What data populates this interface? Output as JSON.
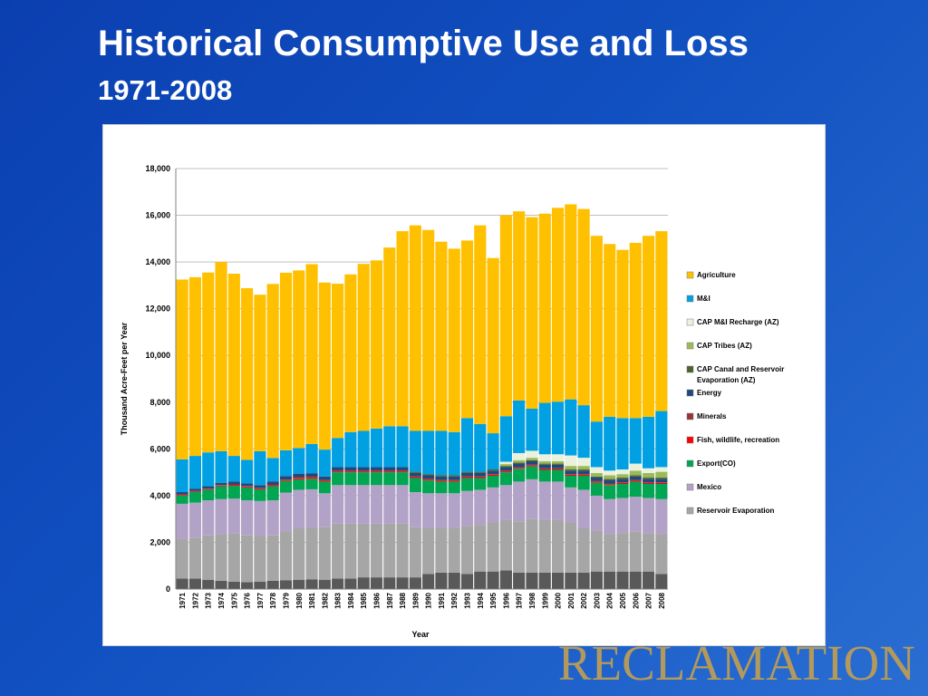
{
  "slide": {
    "title": "Historical Consumptive Use and Loss",
    "subtitle": "1971-2008",
    "logo": "RECLAMATION"
  },
  "chart_data": {
    "type": "stacked-bar",
    "xlabel": "Year",
    "ylabel": "Thousand Acre-Feet per Year",
    "ylim": [
      0,
      18000
    ],
    "yticks": [
      0,
      2000,
      4000,
      6000,
      8000,
      10000,
      12000,
      14000,
      16000,
      18000
    ],
    "ytick_labels": [
      "0",
      "2,000",
      "4,000",
      "6,000",
      "8,000",
      "10,000",
      "12,000",
      "14,000",
      "16,000",
      "18,000"
    ],
    "grid": true,
    "legend_position": "right",
    "categories": [
      "1971",
      "1972",
      "1973",
      "1974",
      "1975",
      "1976",
      "1977",
      "1978",
      "1979",
      "1980",
      "1981",
      "1982",
      "1983",
      "1984",
      "1985",
      "1986",
      "1987",
      "1988",
      "1989",
      "1990",
      "1991",
      "1992",
      "1993",
      "1994",
      "1995",
      "1996",
      "1997",
      "1998",
      "1999",
      "2000",
      "2001",
      "2002",
      "2003",
      "2004",
      "2005",
      "2006",
      "2007",
      "2008"
    ],
    "series": [
      {
        "name": "Reservoir Evaporation (dark)",
        "legend": false,
        "color": "#595959",
        "values": [
          450,
          450,
          400,
          350,
          320,
          300,
          320,
          350,
          380,
          400,
          420,
          400,
          450,
          450,
          500,
          500,
          500,
          500,
          500,
          650,
          700,
          700,
          650,
          750,
          750,
          800,
          700,
          700,
          700,
          700,
          700,
          700,
          750,
          750,
          750,
          750,
          750,
          650
        ]
      },
      {
        "name": "Reservoir Evaporation",
        "legend": true,
        "color": "#a6a6a6",
        "values": [
          1700,
          1750,
          1900,
          2000,
          2050,
          2000,
          1950,
          1950,
          2100,
          2200,
          2200,
          2250,
          2350,
          2350,
          2300,
          2300,
          2300,
          2300,
          2150,
          1950,
          1900,
          1900,
          2050,
          2000,
          2100,
          2150,
          2200,
          2300,
          2250,
          2250,
          2150,
          1900,
          1750,
          1600,
          1650,
          1700,
          1650,
          1700
        ]
      },
      {
        "name": "Mexico",
        "legend": true,
        "color": "#b3a2c7",
        "values": [
          1500,
          1500,
          1500,
          1500,
          1500,
          1500,
          1500,
          1500,
          1650,
          1650,
          1650,
          1450,
          1650,
          1650,
          1650,
          1650,
          1650,
          1650,
          1500,
          1500,
          1500,
          1500,
          1500,
          1500,
          1500,
          1500,
          1700,
          1700,
          1650,
          1650,
          1500,
          1650,
          1500,
          1500,
          1500,
          1500,
          1500,
          1500
        ]
      },
      {
        "name": "Export(CO)",
        "legend": true,
        "color": "#00a651",
        "values": [
          350,
          450,
          450,
          550,
          550,
          550,
          500,
          600,
          500,
          450,
          450,
          500,
          550,
          550,
          550,
          550,
          550,
          550,
          600,
          550,
          500,
          500,
          550,
          500,
          500,
          550,
          550,
          550,
          500,
          500,
          500,
          600,
          550,
          600,
          600,
          650,
          600,
          650
        ]
      },
      {
        "name": "Fish, wildlife, recreation",
        "legend": true,
        "color": "#ff0000",
        "values": [
          30,
          30,
          30,
          30,
          40,
          40,
          40,
          40,
          40,
          60,
          60,
          40,
          40,
          40,
          40,
          40,
          40,
          40,
          40,
          40,
          40,
          40,
          40,
          40,
          40,
          40,
          40,
          40,
          40,
          40,
          40,
          40,
          40,
          40,
          40,
          40,
          40,
          40
        ]
      },
      {
        "name": "Minerals",
        "legend": true,
        "color": "#953735",
        "values": [
          20,
          20,
          20,
          20,
          20,
          20,
          20,
          20,
          20,
          30,
          30,
          30,
          30,
          30,
          30,
          30,
          30,
          30,
          30,
          30,
          30,
          30,
          30,
          30,
          30,
          30,
          30,
          30,
          30,
          30,
          30,
          30,
          30,
          30,
          30,
          30,
          30,
          30
        ]
      },
      {
        "name": "Energy",
        "legend": true,
        "color": "#1f497d",
        "values": [
          100,
          100,
          100,
          100,
          120,
          120,
          120,
          150,
          150,
          150,
          150,
          150,
          150,
          150,
          150,
          150,
          150,
          150,
          150,
          150,
          150,
          150,
          150,
          150,
          150,
          150,
          150,
          150,
          150,
          150,
          150,
          150,
          150,
          150,
          150,
          150,
          150,
          150
        ]
      },
      {
        "name": "CAP Canal and Reservoir Evaporation (AZ)",
        "legend": true,
        "color": "#4f6228",
        "values": [
          0,
          0,
          0,
          0,
          0,
          0,
          0,
          0,
          0,
          0,
          0,
          0,
          0,
          0,
          0,
          0,
          0,
          0,
          50,
          50,
          50,
          50,
          50,
          50,
          50,
          50,
          50,
          50,
          50,
          50,
          50,
          50,
          50,
          50,
          50,
          50,
          50,
          50
        ]
      },
      {
        "name": "CAP Tribes (AZ)",
        "legend": true,
        "color": "#9bbb59",
        "values": [
          0,
          0,
          0,
          0,
          0,
          0,
          0,
          0,
          0,
          0,
          0,
          0,
          0,
          0,
          0,
          0,
          0,
          0,
          0,
          0,
          0,
          0,
          0,
          0,
          0,
          80,
          100,
          100,
          100,
          100,
          150,
          150,
          150,
          150,
          150,
          200,
          200,
          250
        ]
      },
      {
        "name": "CAP M&I Recharge (AZ)",
        "legend": true,
        "color": "#eaf1dd",
        "values": [
          0,
          0,
          0,
          0,
          0,
          0,
          0,
          0,
          0,
          0,
          0,
          0,
          0,
          0,
          0,
          0,
          0,
          0,
          0,
          0,
          0,
          0,
          0,
          0,
          0,
          100,
          300,
          300,
          300,
          300,
          450,
          350,
          250,
          200,
          200,
          300,
          200,
          200
        ]
      },
      {
        "name": "M&I",
        "legend": true,
        "color": "#00a0e3",
        "values": [
          1400,
          1400,
          1450,
          1350,
          1100,
          1000,
          1450,
          1000,
          1100,
          1100,
          1250,
          1150,
          1250,
          1500,
          1550,
          1650,
          1750,
          1750,
          1750,
          1850,
          1900,
          1850,
          2300,
          2050,
          1550,
          1950,
          2250,
          1800,
          2200,
          2250,
          2400,
          2250,
          1950,
          2300,
          2200,
          1950,
          2200,
          2400
        ]
      },
      {
        "name": "Agriculture",
        "legend": true,
        "color": "#ffc000",
        "values": [
          7700,
          7650,
          7700,
          8100,
          7800,
          7350,
          6700,
          7450,
          7600,
          7600,
          7700,
          7150,
          6600,
          6750,
          7150,
          7200,
          7650,
          8350,
          8800,
          8600,
          8100,
          7850,
          7600,
          8500,
          7500,
          8600,
          8100,
          8200,
          8100,
          8300,
          8350,
          8400,
          7950,
          7400,
          7200,
          7500,
          7750,
          7700
        ]
      }
    ]
  }
}
